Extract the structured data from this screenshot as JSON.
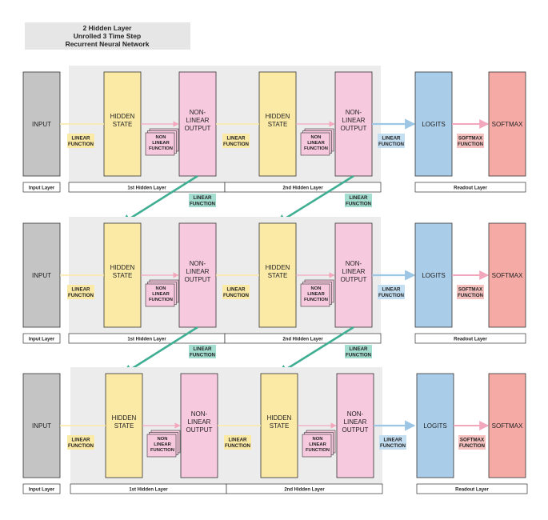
{
  "title": {
    "line1": "2 Hidden Layer",
    "line2": "Unrolled 3 Time Step",
    "line3": "Recurrent Neural Network"
  },
  "labels": {
    "input": "INPUT",
    "hidden_state": [
      "HIDDEN",
      "STATE"
    ],
    "nonlinear_output": [
      "NON-",
      "LINEAR",
      "OUTPUT"
    ],
    "nonlinear_function": [
      "NON",
      "LINEAR",
      "FUNCTION"
    ],
    "linear_function": [
      "LINEAR",
      "FUNCTION"
    ],
    "logits": "LOGITS",
    "softmax": "SOFTMAX",
    "softmax_function": [
      "SOFTMAX",
      "FUNCTION"
    ]
  },
  "layer_labels": {
    "input": "Input Layer",
    "hidden1": "1st Hidden Layer",
    "hidden2": "2nd Hidden Layer",
    "readout": "Readout Layer"
  },
  "time_steps": 3,
  "colors": {
    "input": "#c4c4c4",
    "hidden_state": "#fbe9a6",
    "nonlinear_output": "#f7c9de",
    "logits": "#a9cce8",
    "softmax": "#f6aaa5",
    "panel": "#ececec",
    "linear_tag": "#fbe9a6",
    "readout_tag": "#c4def1",
    "recurrent_tag": "#a3ded0",
    "recurrent_arrow": "#3fae93",
    "softmax_tag": "#f6c2c0",
    "title_bg": "#e6e6e6"
  }
}
